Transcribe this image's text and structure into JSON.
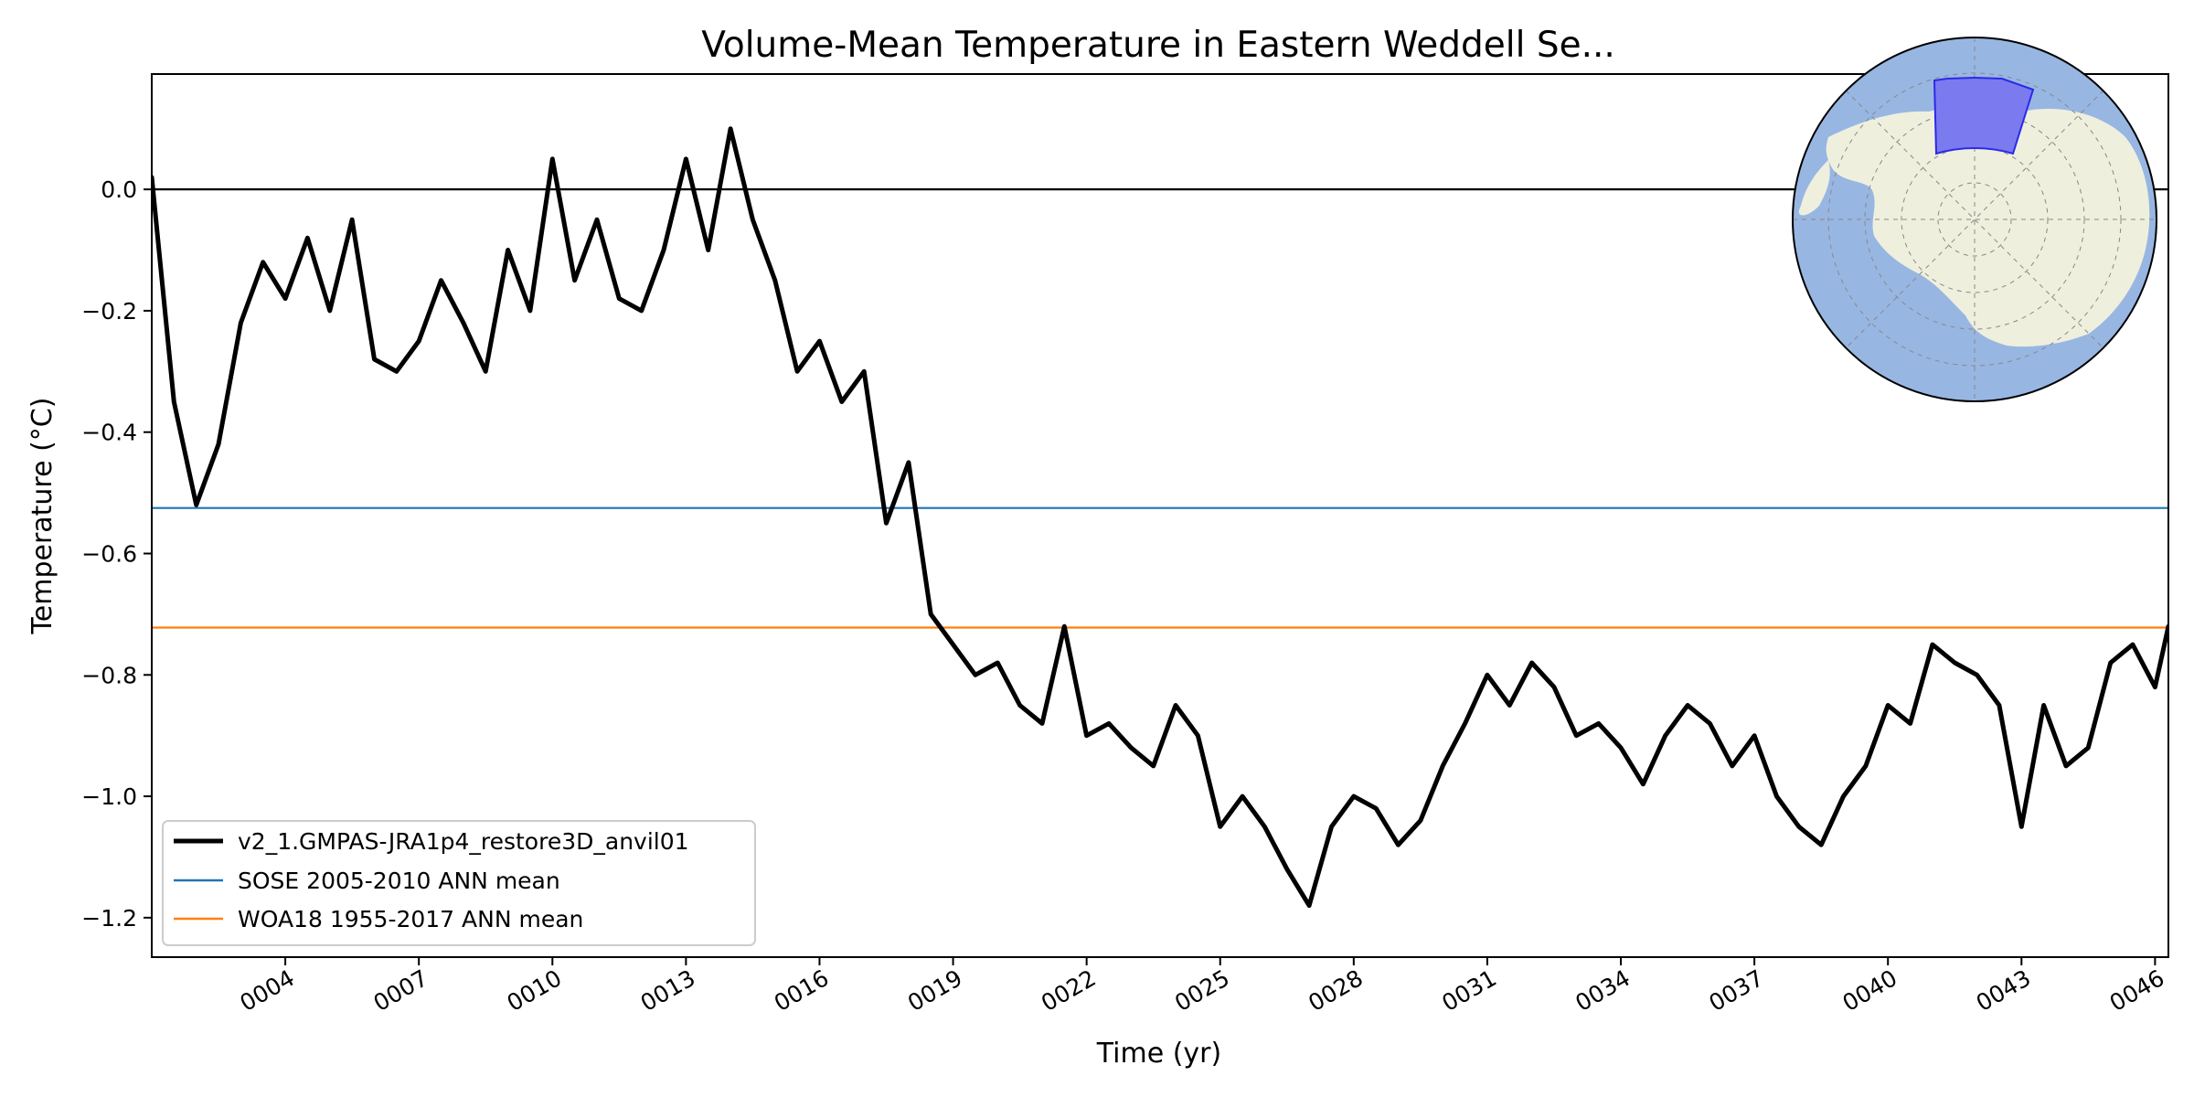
{
  "chart_data": {
    "type": "line",
    "title": "Volume-Mean Temperature in Eastern Weddell Se...",
    "xlabel": "Time (yr)",
    "ylabel": "Temperature (°C)",
    "xlim": [
      1.0,
      46.3
    ],
    "ylim": [
      -1.265,
      0.19
    ],
    "yticks": [
      0.0,
      -0.2,
      -0.4,
      -0.6,
      -0.8,
      -1.0,
      -1.2
    ],
    "ytick_labels": [
      "0.0",
      "−0.2",
      "−0.4",
      "−0.6",
      "−0.8",
      "−1.0",
      "−1.2"
    ],
    "xticks": [
      4,
      7,
      10,
      13,
      16,
      19,
      22,
      25,
      28,
      31,
      34,
      37,
      40,
      43,
      46
    ],
    "xtick_labels": [
      "0004",
      "0007",
      "0010",
      "0013",
      "0016",
      "0019",
      "0022",
      "0025",
      "0028",
      "0031",
      "0034",
      "0037",
      "0040",
      "0043",
      "0046"
    ],
    "grid": false,
    "legend_position": "lower-left",
    "series": [
      {
        "name": "v2_1.GMPAS-JRA1p4_restore3D_anvil01",
        "color": "#000000",
        "x": [
          1.0,
          1.5,
          2.0,
          2.5,
          3.0,
          3.5,
          4.0,
          4.5,
          5.0,
          5.5,
          6.0,
          6.5,
          7.0,
          7.5,
          8.0,
          8.5,
          9.0,
          9.5,
          10.0,
          10.5,
          11.0,
          11.5,
          12.0,
          12.5,
          13.0,
          13.5,
          14.0,
          14.5,
          15.0,
          15.5,
          16.0,
          16.5,
          17.0,
          17.5,
          18.0,
          18.5,
          19.0,
          19.5,
          20.0,
          20.5,
          21.0,
          21.5,
          22.0,
          22.5,
          23.0,
          23.5,
          24.0,
          24.5,
          25.0,
          25.5,
          26.0,
          26.5,
          27.0,
          27.5,
          28.0,
          28.5,
          29.0,
          29.5,
          30.0,
          30.5,
          31.0,
          31.5,
          32.0,
          32.5,
          33.0,
          33.5,
          34.0,
          34.5,
          35.0,
          35.5,
          36.0,
          36.5,
          37.0,
          37.5,
          38.0,
          38.5,
          39.0,
          39.5,
          40.0,
          40.5,
          41.0,
          41.5,
          42.0,
          42.5,
          43.0,
          43.5,
          44.0,
          44.5,
          45.0,
          45.5,
          46.0,
          46.3
        ],
        "y": [
          0.02,
          -0.35,
          -0.52,
          -0.42,
          -0.22,
          -0.12,
          -0.18,
          -0.08,
          -0.2,
          -0.05,
          -0.28,
          -0.3,
          -0.25,
          -0.15,
          -0.22,
          -0.3,
          -0.1,
          -0.2,
          0.05,
          -0.15,
          -0.05,
          -0.18,
          -0.2,
          -0.1,
          0.05,
          -0.1,
          0.1,
          -0.05,
          -0.15,
          -0.3,
          -0.25,
          -0.35,
          -0.3,
          -0.55,
          -0.45,
          -0.7,
          -0.75,
          -0.8,
          -0.78,
          -0.85,
          -0.88,
          -0.72,
          -0.9,
          -0.88,
          -0.92,
          -0.95,
          -0.85,
          -0.9,
          -1.05,
          -1.0,
          -1.05,
          -1.12,
          -1.18,
          -1.05,
          -1.0,
          -1.02,
          -1.08,
          -1.04,
          -0.95,
          -0.88,
          -0.8,
          -0.85,
          -0.78,
          -0.82,
          -0.9,
          -0.88,
          -0.92,
          -0.98,
          -0.9,
          -0.85,
          -0.88,
          -0.95,
          -0.9,
          -1.0,
          -1.05,
          -1.08,
          -1.0,
          -0.95,
          -0.85,
          -0.88,
          -0.75,
          -0.78,
          -0.8,
          -0.85,
          -1.05,
          -0.85,
          -0.95,
          -0.92,
          -0.78,
          -0.75,
          -0.82,
          -0.72
        ]
      },
      {
        "name": "SOSE 2005-2010 ANN mean",
        "color": "#1f77b4",
        "y_const": -0.525
      },
      {
        "name": "WOA18 1955-2017 ANN mean",
        "color": "#ff7f0e",
        "y_const": -0.722
      }
    ],
    "reference_line": {
      "y": 0.0,
      "color": "#000000"
    }
  },
  "inset_map": {
    "ocean_color": "#98b6e2",
    "land_color": "#efefde",
    "region_color": "#7b7aef"
  }
}
